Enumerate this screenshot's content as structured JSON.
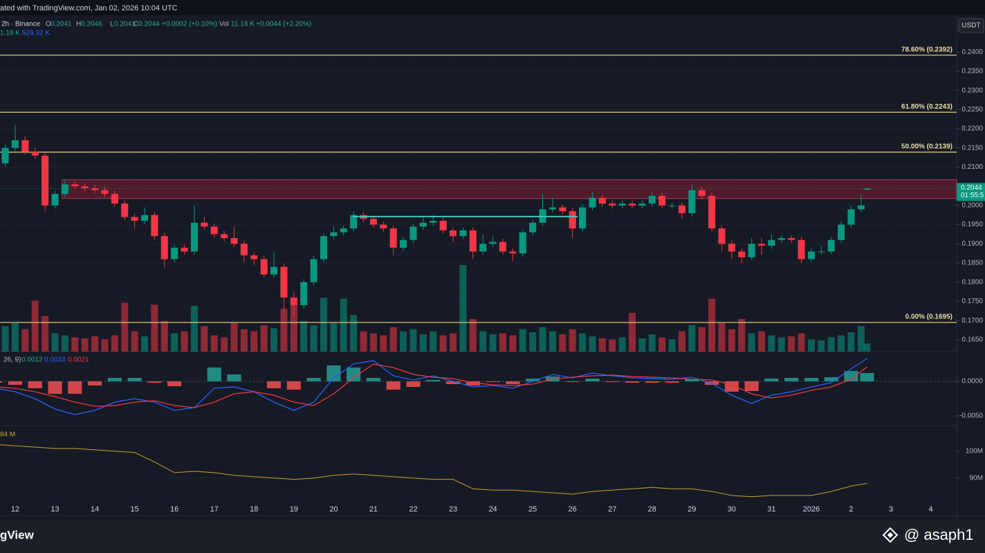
{
  "chart_data": {
    "type": "candlestick",
    "watermark_top": "ated with TradingView.com, Jan 02, 2026 10:04 UTC",
    "legend": {
      "symbol": "2h · Binance",
      "o": "O",
      "h": "H",
      "l": "L",
      "c": "C",
      "change": "+0.0002 (+0.10%)",
      "vol_label": "Vol",
      "vol_value": "11.18 K",
      "vol_change": "+0.0044 (+2.20%)",
      "vol_ma": "1.18 K",
      "vol_ma2": "529.32 K"
    },
    "quote": "USDT",
    "countdown": "01:55:5",
    "brand": "gView",
    "author": "@ asaph1",
    "up_color": "#089981",
    "down_color": "#f23645",
    "xlim": [
      -0.382,
      23.65
    ],
    "xticks": [
      {
        "value": 0,
        "label": "12"
      },
      {
        "value": 1,
        "label": "13"
      },
      {
        "value": 2,
        "label": "14"
      },
      {
        "value": 3,
        "label": "15"
      },
      {
        "value": 4,
        "label": "16"
      },
      {
        "value": 5,
        "label": "17"
      },
      {
        "value": 6,
        "label": "18"
      },
      {
        "value": 7,
        "label": "19"
      },
      {
        "value": 8,
        "label": "20"
      },
      {
        "value": 9,
        "label": "21"
      },
      {
        "value": 10,
        "label": "22"
      },
      {
        "value": 11,
        "label": "23"
      },
      {
        "value": 12,
        "label": "24"
      },
      {
        "value": 13,
        "label": "25"
      },
      {
        "value": 14,
        "label": "26"
      },
      {
        "value": 15,
        "label": "27"
      },
      {
        "value": 16,
        "label": "28"
      },
      {
        "value": 17,
        "label": "29"
      },
      {
        "value": 18,
        "label": "30"
      },
      {
        "value": 19,
        "label": "31"
      },
      {
        "value": 20,
        "label": "2026"
      },
      {
        "value": 21,
        "label": "2"
      },
      {
        "value": 22,
        "label": "3"
      },
      {
        "value": 23,
        "label": "4"
      }
    ],
    "ylim": [
      0.1619,
      0.2496
    ],
    "yticks": [
      {
        "value": 0.24,
        "label": "0.2400"
      },
      {
        "value": 0.235,
        "label": "0.2350"
      },
      {
        "value": 0.23,
        "label": "0.2300"
      },
      {
        "value": 0.225,
        "label": "0.2250"
      },
      {
        "value": 0.22,
        "label": "0.2200"
      },
      {
        "value": 0.215,
        "label": "0.2150"
      },
      {
        "value": 0.21,
        "label": "0.2100"
      },
      {
        "value": 0.205,
        "label": "0.2050"
      },
      {
        "value": 0.2,
        "label": "0.2000"
      },
      {
        "value": 0.195,
        "label": "0.1950"
      },
      {
        "value": 0.19,
        "label": "0.1900"
      },
      {
        "value": 0.185,
        "label": "0.1850"
      },
      {
        "value": 0.18,
        "label": "0.1800"
      },
      {
        "value": 0.175,
        "label": "0.1750"
      },
      {
        "value": 0.17,
        "label": "0.1700"
      },
      {
        "value": 0.165,
        "label": "0.1650"
      }
    ],
    "fib_levels": [
      {
        "label": "78.60% (0.2392)",
        "value": 0.2392
      },
      {
        "label": "61.80% (0.2243)",
        "value": 0.2243
      },
      {
        "label": "50.00% (0.2139)",
        "value": 0.2139
      },
      {
        "label": "0.00% (0.1695)",
        "value": 0.1695
      }
    ],
    "fib_color": "#d8c57a",
    "zone": {
      "low": 0.2018,
      "high": 0.2067,
      "x_start": 1.18
    },
    "support_line": {
      "value": 0.1971,
      "x_start": 8.48,
      "x_end": 14.13,
      "color": "#3fc9c0"
    },
    "x": [
      -0.5,
      -0.25,
      0,
      0.25,
      0.5,
      0.75,
      1,
      1.25,
      1.5,
      1.75,
      2,
      2.25,
      2.5,
      2.75,
      3,
      3.25,
      3.5,
      3.75,
      4,
      4.25,
      4.5,
      4.75,
      5,
      5.25,
      5.5,
      5.75,
      6,
      6.25,
      6.5,
      6.75,
      7,
      7.25,
      7.5,
      7.75,
      8,
      8.25,
      8.5,
      8.75,
      9,
      9.25,
      9.5,
      9.75,
      10,
      10.25,
      10.5,
      10.75,
      11,
      11.25,
      11.5,
      11.75,
      12,
      12.25,
      12.5,
      12.75,
      13,
      13.25,
      13.5,
      13.75,
      14,
      14.25,
      14.5,
      14.75,
      15,
      15.25,
      15.5,
      15.75,
      16,
      16.25,
      16.5,
      16.75,
      17,
      17.25,
      17.5,
      17.75,
      18,
      18.25,
      18.5,
      18.75,
      19,
      19.25,
      19.5,
      19.75,
      20,
      20.25,
      20.5,
      20.75,
      21,
      21.25,
      21.4
    ],
    "open": [
      0.21,
      0.211,
      0.215,
      0.217,
      0.214,
      0.213,
      0.2,
      0.203,
      0.2055,
      0.205,
      0.2045,
      0.204,
      0.203,
      0.2005,
      0.197,
      0.196,
      0.1975,
      0.192,
      0.186,
      0.189,
      0.188,
      0.1955,
      0.1945,
      0.1925,
      0.1915,
      0.19,
      0.187,
      0.186,
      0.182,
      0.184,
      0.176,
      0.174,
      0.18,
      0.186,
      0.192,
      0.193,
      0.194,
      0.1975,
      0.1965,
      0.195,
      0.194,
      0.189,
      0.191,
      0.1945,
      0.1955,
      0.196,
      0.1935,
      0.192,
      0.1935,
      0.188,
      0.19,
      0.1905,
      0.188,
      0.1875,
      0.193,
      0.1955,
      0.199,
      0.1995,
      0.1985,
      0.194,
      0.1995,
      0.202,
      0.2005,
      0.2,
      0.2005,
      0.2,
      0.2005,
      0.2025,
      0.2,
      0.2,
      0.198,
      0.204,
      0.2025,
      0.194,
      0.19,
      0.188,
      0.1865,
      0.19,
      0.1895,
      0.191,
      0.1915,
      0.191,
      0.186,
      0.188,
      0.188,
      0.191,
      0.195,
      0.199,
      0.2041
    ],
    "high": [
      0.2118,
      0.216,
      0.221,
      0.218,
      0.215,
      0.2138,
      0.2038,
      0.2068,
      0.2063,
      0.2058,
      0.2053,
      0.2048,
      0.2038,
      0.2013,
      0.1978,
      0.1995,
      0.1983,
      0.1928,
      0.1898,
      0.1898,
      0.2,
      0.197,
      0.1953,
      0.1933,
      0.1945,
      0.1908,
      0.1878,
      0.1868,
      0.188,
      0.1848,
      0.1775,
      0.1808,
      0.1868,
      0.1928,
      0.1945,
      0.1948,
      0.1985,
      0.1983,
      0.1973,
      0.1958,
      0.1948,
      0.1918,
      0.1953,
      0.197,
      0.1975,
      0.1968,
      0.1943,
      0.1943,
      0.1943,
      0.1925,
      0.192,
      0.1913,
      0.1888,
      0.1938,
      0.1963,
      0.203,
      0.202,
      0.2003,
      0.1993,
      0.2003,
      0.2035,
      0.2028,
      0.2013,
      0.2013,
      0.2013,
      0.2013,
      0.2033,
      0.2033,
      0.2008,
      0.2008,
      0.2055,
      0.2048,
      0.2033,
      0.1948,
      0.1908,
      0.1888,
      0.1915,
      0.1915,
      0.1925,
      0.1923,
      0.1923,
      0.1918,
      0.1888,
      0.1895,
      0.1918,
      0.1958,
      0.1998,
      0.203,
      0.2046
    ],
    "low": [
      0.2092,
      0.2102,
      0.2142,
      0.2132,
      0.2122,
      0.1985,
      0.1992,
      0.2022,
      0.2042,
      0.2037,
      0.2032,
      0.2022,
      0.1997,
      0.1962,
      0.194,
      0.1952,
      0.1912,
      0.1838,
      0.1852,
      0.1872,
      0.1872,
      0.1937,
      0.1917,
      0.1907,
      0.1892,
      0.1852,
      0.1845,
      0.1812,
      0.1812,
      0.172,
      0.1712,
      0.1732,
      0.1792,
      0.1852,
      0.1912,
      0.1922,
      0.1932,
      0.1957,
      0.1942,
      0.1932,
      0.187,
      0.1882,
      0.1902,
      0.1937,
      0.1947,
      0.1927,
      0.1905,
      0.1912,
      0.186,
      0.1872,
      0.1892,
      0.1872,
      0.1855,
      0.1867,
      0.1922,
      0.1947,
      0.1982,
      0.1977,
      0.1915,
      0.1932,
      0.1987,
      0.1997,
      0.1992,
      0.1992,
      0.1992,
      0.1992,
      0.1997,
      0.1992,
      0.1992,
      0.1965,
      0.1972,
      0.2017,
      0.1932,
      0.188,
      0.186,
      0.185,
      0.1857,
      0.1872,
      0.1887,
      0.1902,
      0.1902,
      0.185,
      0.1852,
      0.1872,
      0.1872,
      0.1902,
      0.1942,
      0.1982,
      0.2041
    ],
    "close": [
      0.211,
      0.215,
      0.217,
      0.214,
      0.213,
      0.2,
      0.203,
      0.2055,
      0.205,
      0.2045,
      0.204,
      0.203,
      0.2005,
      0.197,
      0.196,
      0.1975,
      0.192,
      0.186,
      0.189,
      0.188,
      0.1955,
      0.1945,
      0.1925,
      0.1915,
      0.19,
      0.187,
      0.186,
      0.182,
      0.184,
      0.176,
      0.174,
      0.18,
      0.186,
      0.192,
      0.193,
      0.194,
      0.1975,
      0.1965,
      0.195,
      0.194,
      0.189,
      0.191,
      0.1945,
      0.1955,
      0.196,
      0.1935,
      0.192,
      0.1935,
      0.188,
      0.19,
      0.1905,
      0.188,
      0.1875,
      0.193,
      0.1955,
      0.199,
      0.1995,
      0.1985,
      0.194,
      0.1995,
      0.202,
      0.2005,
      0.2,
      0.2005,
      0.2,
      0.2005,
      0.2025,
      0.2,
      0.2,
      0.198,
      0.204,
      0.2025,
      0.194,
      0.19,
      0.188,
      0.1865,
      0.19,
      0.1895,
      0.191,
      0.1915,
      0.191,
      0.186,
      0.188,
      0.188,
      0.191,
      0.195,
      0.199,
      0.2,
      0.2044
    ],
    "volume": [
      200,
      250,
      280,
      220,
      500,
      350,
      180,
      160,
      140,
      130,
      150,
      120,
      160,
      480,
      200,
      150,
      460,
      300,
      180,
      200,
      450,
      250,
      160,
      140,
      280,
      220,
      200,
      260,
      230,
      420,
      480,
      300,
      260,
      530,
      280,
      520,
      360,
      200,
      180,
      160,
      240,
      200,
      220,
      170,
      200,
      160,
      180,
      850,
      320,
      200,
      170,
      180,
      160,
      220,
      190,
      240,
      200,
      170,
      220,
      180,
      150,
      130,
      120,
      140,
      380,
      130,
      170,
      140,
      120,
      200,
      260,
      240,
      520,
      280,
      220,
      320,
      180,
      200,
      160,
      140,
      150,
      180,
      120,
      110,
      140,
      160,
      190,
      250,
      80
    ],
    "macd": {
      "label": "26, 9)",
      "ylim": [
        -0.0064,
        0.0043
      ],
      "yticks": [
        {
          "value": 0,
          "label": "0.0000"
        },
        {
          "value": -0.005,
          "label": "-0.0050"
        }
      ],
      "x": [
        -0.5,
        0,
        0.5,
        1,
        1.5,
        2,
        2.5,
        3,
        3.5,
        4,
        4.5,
        5,
        5.5,
        6,
        6.5,
        7,
        7.5,
        8,
        8.5,
        9,
        9.5,
        10,
        10.5,
        11,
        11.5,
        12,
        12.5,
        13,
        13.5,
        14,
        14.5,
        15,
        15.5,
        16,
        16.5,
        17,
        17.5,
        18,
        18.5,
        19,
        19.5,
        20,
        20.5,
        21,
        21.4
      ],
      "macd": [
        -0.001,
        -0.0015,
        -0.0025,
        -0.004,
        -0.0048,
        -0.0042,
        -0.003,
        -0.0025,
        -0.003,
        -0.0042,
        -0.0038,
        -0.001,
        -0.0008,
        -0.0015,
        -0.003,
        -0.0042,
        -0.003,
        0.0005,
        0.0025,
        0.003,
        0.0008,
        0.0002,
        0.0008,
        0,
        -0.0008,
        -0.0006,
        -0.001,
        0,
        0.001,
        0.0005,
        0.0012,
        0.0008,
        0.0005,
        0.0004,
        0.0003,
        0.0006,
        -0.0003,
        -0.002,
        -0.0032,
        -0.002,
        -0.0015,
        -0.0008,
        -0.0002,
        0.0018,
        0.0033
      ],
      "signal": [
        -0.0008,
        -0.001,
        -0.0015,
        -0.0022,
        -0.003,
        -0.0036,
        -0.0035,
        -0.003,
        -0.0028,
        -0.0035,
        -0.0038,
        -0.003,
        -0.0018,
        -0.0015,
        -0.002,
        -0.003,
        -0.0035,
        -0.0018,
        0.0005,
        0.0025,
        0.002,
        0.001,
        0.0006,
        0.0004,
        -0.0002,
        -0.0005,
        -0.0006,
        -0.0004,
        0.0003,
        0.0006,
        0.0008,
        0.0009,
        0.0007,
        0.0006,
        0.0005,
        0.0003,
        0.0002,
        -0.0005,
        -0.0018,
        -0.0024,
        -0.002,
        -0.0013,
        -0.0008,
        0.0003,
        0.0021
      ],
      "histogram": [
        -0.0002,
        -0.0005,
        -0.001,
        -0.0018,
        -0.0018,
        -0.0006,
        0.0005,
        0.0005,
        -0.0002,
        -0.0007,
        0,
        0.002,
        0.001,
        0,
        -0.001,
        -0.0012,
        0.0005,
        0.0023,
        0.002,
        0.0005,
        -0.0012,
        -0.0008,
        0.0002,
        -0.0004,
        -0.0006,
        -0.0001,
        -0.0004,
        0.0004,
        0.0007,
        -0.0001,
        0.0004,
        -0.0001,
        -0.0002,
        -0.0002,
        -0.0002,
        0.0003,
        -0.0005,
        -0.0015,
        -0.0014,
        0.0004,
        0.0005,
        0.0005,
        0.0006,
        0.0015,
        0.0012
      ],
      "macd_color": "#2962ff",
      "signal_color": "#f23645"
    },
    "lower": {
      "label": "84 M",
      "color": "#c9a227",
      "ylim": [
        76,
        109.5
      ],
      "yticks": [
        {
          "value": 100,
          "label": "100M"
        },
        {
          "value": 90,
          "label": "90M"
        }
      ],
      "x": [
        -0.5,
        0,
        0.5,
        1,
        1.5,
        2,
        2.5,
        3,
        3.5,
        4,
        4.5,
        5,
        5.5,
        6,
        6.5,
        7,
        7.5,
        8,
        8.5,
        9,
        9.5,
        10,
        10.5,
        11,
        11.5,
        12,
        12.5,
        13,
        13.5,
        14,
        14.5,
        15,
        15.5,
        16,
        16.5,
        17,
        17.5,
        18,
        18.5,
        19,
        19.5,
        20,
        20.5,
        21,
        21.4
      ],
      "values": [
        102.5,
        102,
        101.5,
        101,
        101,
        100.5,
        100,
        99.5,
        96,
        92,
        92.5,
        92,
        91,
        90.5,
        90,
        89.5,
        90,
        91,
        91.5,
        91,
        90.5,
        90,
        89.5,
        89.5,
        86,
        85.5,
        85.5,
        85,
        84.5,
        84,
        85,
        85.5,
        86,
        86.5,
        86,
        86,
        85,
        83.5,
        83,
        83.5,
        83.5,
        83.5,
        85,
        87,
        88
      ]
    }
  }
}
